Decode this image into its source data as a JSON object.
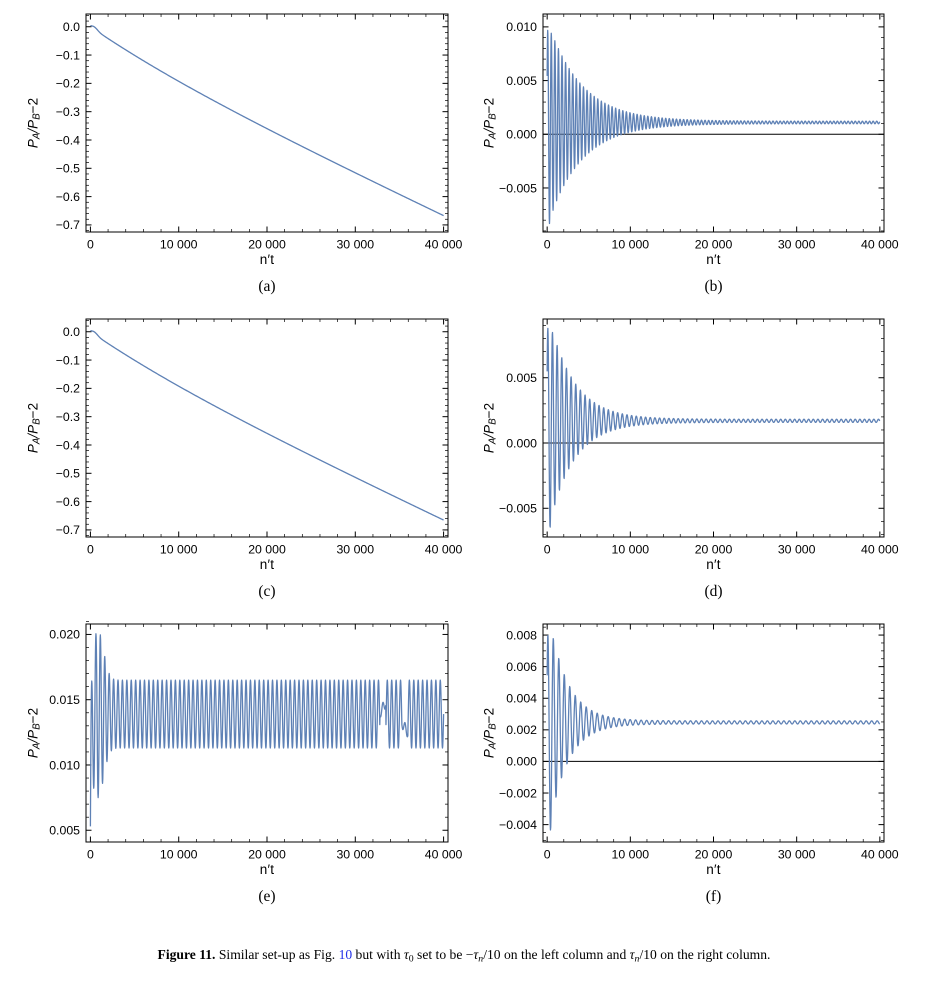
{
  "page": {
    "background": "#ffffff"
  },
  "chart_style": {
    "line_color": "#5e81b5",
    "frame_color": "#000000",
    "tick_label_color": "#000000",
    "zero_line_color": "#000000",
    "tick_font_px": 12.3
  },
  "ylabel_parts": [
    {
      "t": "P",
      "s": "i"
    },
    {
      "t": "A",
      "s": "subi"
    },
    {
      "t": "/",
      "s": "i"
    },
    {
      "t": "P",
      "s": "i"
    },
    {
      "t": "B",
      "s": "subi"
    },
    {
      "t": "−2",
      "s": "n"
    }
  ],
  "chart_data": [
    {
      "id": "a",
      "letter": "(a)",
      "type": "line",
      "xlabel": "n′t",
      "ylabel": "PA/PB−2",
      "xlim": [
        -500,
        40500
      ],
      "ylim": [
        -0.725,
        0.045
      ],
      "xticks": {
        "values": [
          0,
          10000,
          20000,
          30000,
          40000
        ],
        "labels": [
          "0",
          "10 000",
          "20 000",
          "30 000",
          "40 000"
        ],
        "minor_step": 2000
      },
      "yticks": {
        "values": [
          0.0,
          -0.1,
          -0.2,
          -0.3,
          -0.4,
          -0.5,
          -0.6,
          -0.7
        ],
        "labels": [
          "0.0",
          "−0.1",
          "−0.2",
          "−0.3",
          "−0.4",
          "−0.5",
          "−0.6",
          "−0.7"
        ],
        "minor_step": 0.02
      },
      "zero_line": false,
      "series": {
        "kind": "drift",
        "hook_amp": 0.009,
        "hook_x": 450,
        "hook_w": 500,
        "a": 0.08,
        "c": 12000,
        "b": 1.475e-05,
        "x_max": 40000,
        "step": 100,
        "description": "monotonic decay from ~0 to −0.667 with small initial bump",
        "key_points": [
          [
            0,
            0.004
          ],
          [
            450,
            0.009
          ],
          [
            10000,
            -0.19
          ],
          [
            20000,
            -0.355
          ],
          [
            30000,
            -0.51
          ],
          [
            40000,
            -0.667
          ]
        ]
      }
    },
    {
      "id": "b",
      "letter": "(b)",
      "type": "line",
      "xlabel": "n′t",
      "ylabel": "PA/PB−2",
      "xlim": [
        -500,
        40500
      ],
      "ylim": [
        -0.0091,
        0.0112
      ],
      "xticks": {
        "values": [
          0,
          10000,
          20000,
          30000,
          40000
        ],
        "labels": [
          "0",
          "10 000",
          "20 000",
          "30 000",
          "40 000"
        ],
        "minor_step": 2000
      },
      "yticks": {
        "values": [
          0.01,
          0.005,
          0.0,
          -0.005
        ],
        "labels": [
          "0.010",
          "0.005",
          "0.000",
          "−0.005"
        ],
        "minor_step": 0.001
      },
      "zero_line": true,
      "series": {
        "kind": "damped_osc",
        "period": 430,
        "phase": 0.6,
        "amp0": 0.0095,
        "amp_tau": 4000,
        "amp_floor": 0.00012,
        "offset_final": 0.0011,
        "offset_tau": 300,
        "x_max": 40000,
        "description": "damped oscillation converging to ~0.0011 by n't≈15000",
        "key_points": [
          [
            0,
            0.0054
          ],
          [
            550,
            0.0101
          ],
          [
            320,
            -0.0082
          ],
          [
            40000,
            0.0011
          ]
        ]
      }
    },
    {
      "id": "c",
      "letter": "(c)",
      "type": "line",
      "xlabel": "n′t",
      "ylabel": "PA/PB−2",
      "xlim": [
        -500,
        40500
      ],
      "ylim": [
        -0.725,
        0.045
      ],
      "xticks": {
        "values": [
          0,
          10000,
          20000,
          30000,
          40000
        ],
        "labels": [
          "0",
          "10 000",
          "20 000",
          "30 000",
          "40 000"
        ],
        "minor_step": 2000
      },
      "yticks": {
        "values": [
          0.0,
          -0.1,
          -0.2,
          -0.3,
          -0.4,
          -0.5,
          -0.6,
          -0.7
        ],
        "labels": [
          "0.0",
          "−0.1",
          "−0.2",
          "−0.3",
          "−0.4",
          "−0.5",
          "−0.6",
          "−0.7"
        ],
        "minor_step": 0.02
      },
      "zero_line": false,
      "series": {
        "kind": "drift",
        "hook_amp": 0.009,
        "hook_x": 450,
        "hook_w": 500,
        "a": 0.08,
        "c": 12000,
        "b": 1.47e-05,
        "x_max": 40000,
        "step": 100,
        "description": "monotonic decay from ~0 to −0.665 with small initial bump",
        "key_points": [
          [
            0,
            0.004
          ],
          [
            450,
            0.009
          ],
          [
            10000,
            -0.19
          ],
          [
            20000,
            -0.35
          ],
          [
            30000,
            -0.51
          ],
          [
            40000,
            -0.665
          ]
        ]
      }
    },
    {
      "id": "d",
      "letter": "(d)",
      "type": "line",
      "xlabel": "n′t",
      "ylabel": "PA/PB−2",
      "xlim": [
        -500,
        40500
      ],
      "ylim": [
        -0.0072,
        0.0095
      ],
      "xticks": {
        "values": [
          0,
          10000,
          20000,
          30000,
          40000
        ],
        "labels": [
          "0",
          "10 000",
          "20 000",
          "30 000",
          "40 000"
        ],
        "minor_step": 2000
      },
      "yticks": {
        "values": [
          0.005,
          0.0,
          -0.005
        ],
        "labels": [
          "0.005",
          "0.000",
          "−0.005"
        ],
        "minor_step": 0.001
      },
      "zero_line": true,
      "series": {
        "kind": "damped_osc",
        "period": 560,
        "phase": 0.69,
        "amp0": 0.0085,
        "amp_tau": 3000,
        "amp_floor": 0.00012,
        "offset_final": 0.0017,
        "offset_tau": 300,
        "x_max": 40000,
        "description": "damped oscillation converging to ~0.0017 by n't≈12000",
        "key_points": [
          [
            0,
            0.0054
          ],
          [
            700,
            0.0092
          ],
          [
            420,
            -0.0066
          ],
          [
            40000,
            0.0017
          ]
        ]
      }
    },
    {
      "id": "e",
      "letter": "(e)",
      "type": "line",
      "xlabel": "n′t",
      "ylabel": "PA/PB−2",
      "xlim": [
        -500,
        40500
      ],
      "ylim": [
        0.0041,
        0.0208
      ],
      "xticks": {
        "values": [
          0,
          10000,
          20000,
          30000,
          40000
        ],
        "labels": [
          "0",
          "10 000",
          "20 000",
          "30 000",
          "40 000"
        ],
        "minor_step": 2000
      },
      "yticks": {
        "values": [
          0.02,
          0.015,
          0.01,
          0.005
        ],
        "labels": [
          "0.020",
          "0.015",
          "0.010",
          "0.005"
        ],
        "minor_step": 0.001
      },
      "zero_line": false,
      "series": {
        "kind": "sustained_osc",
        "period": 500,
        "mean_final": 0.0139,
        "mean_start": 0.0053,
        "mean_tau": 100,
        "amp_base": 0.0026,
        "amp_extra": 0.0038,
        "peak_x": 850,
        "peak_w": 900,
        "x_max": 40000,
        "glitches": [
          {
            "x0": 32800,
            "x1": 33450,
            "level": 0.014,
            "slope": 1.2e-06
          },
          {
            "x0": 35300,
            "x1": 35950,
            "level": 0.0132,
            "slope": -1.1e-06
          }
        ],
        "description": "sustained oscillation between ~0.0113 and ~0.0165 after transient peak ~0.0199 near n't≈850; brief interruptions near 33000 and 35600",
        "key_points": [
          [
            0,
            0.0053
          ],
          [
            850,
            0.0199
          ],
          [
            5000,
            0.0165
          ],
          [
            5000,
            0.0113
          ],
          [
            40000,
            0.0139
          ]
        ]
      }
    },
    {
      "id": "f",
      "letter": "(f)",
      "type": "line",
      "xlabel": "n′t",
      "ylabel": "PA/PB−2",
      "xlim": [
        -500,
        40500
      ],
      "ylim": [
        -0.0051,
        0.0087
      ],
      "xticks": {
        "values": [
          0,
          10000,
          20000,
          30000,
          40000
        ],
        "labels": [
          "0",
          "10 000",
          "20 000",
          "30 000",
          "40 000"
        ],
        "minor_step": 2000
      },
      "yticks": {
        "values": [
          0.008,
          0.006,
          0.004,
          0.002,
          0.0,
          -0.002,
          -0.004
        ],
        "labels": [
          "0.008",
          "0.006",
          "0.004",
          "0.002",
          "0.000",
          "−0.002",
          "−0.004"
        ],
        "minor_step": 0.0005
      },
      "zero_line": true,
      "series": {
        "kind": "damped_osc",
        "period": 660,
        "phase": 0.8,
        "amp0": 0.0075,
        "amp_tau": 2200,
        "amp_floor": 0.0001,
        "offset_final": 0.00247,
        "offset_tau": 250,
        "x_max": 40000,
        "description": "damped oscillation converging to ~0.0025 by n't≈8000",
        "key_points": [
          [
            0,
            0.0054
          ],
          [
            600,
            0.008
          ],
          [
            350,
            -0.0048
          ],
          [
            40000,
            0.0025
          ]
        ]
      }
    }
  ],
  "caption": {
    "link_color": "#2230e8",
    "segments": [
      {
        "t": "Figure 11.",
        "s": "b"
      },
      {
        "t": "  Similar set-up as Fig. ",
        "s": "n"
      },
      {
        "t": "10",
        "s": "link"
      },
      {
        "t": " but with ",
        "s": "n"
      },
      {
        "t": "τ",
        "s": "i"
      },
      {
        "t": "0",
        "s": "sub"
      },
      {
        "t": " set to be −",
        "s": "n"
      },
      {
        "t": "τ",
        "s": "i"
      },
      {
        "t": "n",
        "s": "subi"
      },
      {
        "t": "/10 on the left column and ",
        "s": "n"
      },
      {
        "t": "τ",
        "s": "i"
      },
      {
        "t": "n",
        "s": "subi"
      },
      {
        "t": "/10 on the right column.",
        "s": "n"
      }
    ]
  }
}
